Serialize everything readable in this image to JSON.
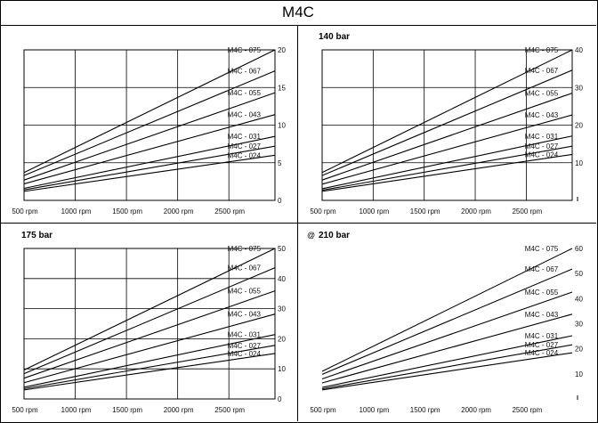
{
  "title": "M4C",
  "chart_data": [
    {
      "type": "line",
      "title": "",
      "x_tick_labels": [
        "500 rpm",
        "1000 rpm",
        "1500 rpm",
        "2000 rpm",
        "2500 rpm"
      ],
      "x_ticks": [
        500,
        1000,
        1500,
        2000,
        2500
      ],
      "xlim": [
        500,
        2950
      ],
      "y_ticks": [
        0,
        5,
        10,
        15,
        20
      ],
      "y_tick_labels": [
        "0",
        "5",
        "10",
        "15",
        "20"
      ],
      "ylim": [
        0,
        20
      ],
      "grid": true,
      "series": [
        {
          "name": "M4C - 075",
          "x": [
            500,
            2950
          ],
          "y": [
            3.7,
            20.0
          ]
        },
        {
          "name": "M4C - 067",
          "x": [
            500,
            2950
          ],
          "y": [
            3.3,
            17.2
          ]
        },
        {
          "name": "M4C - 055",
          "x": [
            500,
            2950
          ],
          "y": [
            2.7,
            14.3
          ]
        },
        {
          "name": "M4C - 043",
          "x": [
            500,
            2950
          ],
          "y": [
            2.2,
            11.4
          ]
        },
        {
          "name": "M4C - 031",
          "x": [
            500,
            2950
          ],
          "y": [
            1.6,
            8.5
          ]
        },
        {
          "name": "M4C - 027",
          "x": [
            500,
            2950
          ],
          "y": [
            1.4,
            7.2
          ]
        },
        {
          "name": "M4C - 024",
          "x": [
            500,
            2950
          ],
          "y": [
            1.2,
            6.0
          ]
        }
      ]
    },
    {
      "type": "line",
      "title": "140 bar",
      "x_tick_labels": [
        "500 rpm",
        "1000 rpm",
        "1500 rpm",
        "2000 rpm",
        "2500 rpm"
      ],
      "x_ticks": [
        500,
        1000,
        1500,
        2000,
        2500
      ],
      "xlim": [
        500,
        2950
      ],
      "y_ticks": [
        0,
        10,
        20,
        30,
        40
      ],
      "y_tick_labels": [
        "",
        "10",
        "20",
        "30",
        "40"
      ],
      "ylim": [
        0,
        40
      ],
      "grid": true,
      "series": [
        {
          "name": "M4C - 075",
          "x": [
            500,
            2950
          ],
          "y": [
            7.4,
            40.0
          ]
        },
        {
          "name": "M4C - 067",
          "x": [
            500,
            2950
          ],
          "y": [
            6.6,
            34.6
          ]
        },
        {
          "name": "M4C - 055",
          "x": [
            500,
            2950
          ],
          "y": [
            5.4,
            28.5
          ]
        },
        {
          "name": "M4C - 043",
          "x": [
            500,
            2950
          ],
          "y": [
            4.3,
            22.7
          ]
        },
        {
          "name": "M4C - 031",
          "x": [
            500,
            2950
          ],
          "y": [
            3.1,
            17.1
          ]
        },
        {
          "name": "M4C - 027",
          "x": [
            500,
            2950
          ],
          "y": [
            2.7,
            14.4
          ]
        },
        {
          "name": "M4C - 024",
          "x": [
            500,
            2950
          ],
          "y": [
            2.4,
            12.2
          ]
        }
      ]
    },
    {
      "type": "line",
      "title": "175 bar",
      "x_tick_labels": [
        "500 rpm",
        "1000 rpm",
        "1500 rpm",
        "2000 rpm",
        "2500 rpm"
      ],
      "x_ticks": [
        500,
        1000,
        1500,
        2000,
        2500
      ],
      "xlim": [
        500,
        2950
      ],
      "y_ticks": [
        0,
        10,
        20,
        30,
        40,
        50
      ],
      "y_tick_labels": [
        "0",
        "10",
        "20",
        "30",
        "40",
        "50"
      ],
      "ylim": [
        0,
        50
      ],
      "grid": true,
      "series": [
        {
          "name": "M4C - 075",
          "x": [
            500,
            2950
          ],
          "y": [
            9.6,
            50.0
          ]
        },
        {
          "name": "M4C - 067",
          "x": [
            500,
            2950
          ],
          "y": [
            8.4,
            43.6
          ]
        },
        {
          "name": "M4C - 055",
          "x": [
            500,
            2950
          ],
          "y": [
            6.9,
            35.9
          ]
        },
        {
          "name": "M4C - 043",
          "x": [
            500,
            2950
          ],
          "y": [
            5.4,
            28.2
          ]
        },
        {
          "name": "M4C - 031",
          "x": [
            500,
            2950
          ],
          "y": [
            3.9,
            21.4
          ]
        },
        {
          "name": "M4C - 027",
          "x": [
            500,
            2950
          ],
          "y": [
            3.4,
            17.8
          ]
        },
        {
          "name": "M4C - 024",
          "x": [
            500,
            2950
          ],
          "y": [
            3.0,
            15.1
          ]
        }
      ]
    },
    {
      "type": "line",
      "title": "210 bar",
      "title_prefix": "@",
      "x_tick_labels": [
        "500 rpm",
        "1000 rpm",
        "1500 rpm",
        "2000 rpm",
        "2500 rpm"
      ],
      "x_ticks": [
        500,
        1000,
        1500,
        2000,
        2500
      ],
      "xlim": [
        500,
        2950
      ],
      "y_ticks": [
        0,
        10,
        20,
        30,
        40,
        50,
        60
      ],
      "y_tick_labels": [
        "",
        "10",
        "20",
        "30",
        "40",
        "50",
        "60"
      ],
      "ylim": [
        0,
        60
      ],
      "grid": false,
      "series": [
        {
          "name": "M4C - 075",
          "x": [
            500,
            2950
          ],
          "y": [
            11.0,
            60.0
          ]
        },
        {
          "name": "M4C - 067",
          "x": [
            500,
            2950
          ],
          "y": [
            9.8,
            51.8
          ]
        },
        {
          "name": "M4C - 055",
          "x": [
            500,
            2950
          ],
          "y": [
            8.0,
            42.6
          ]
        },
        {
          "name": "M4C - 043",
          "x": [
            500,
            2950
          ],
          "y": [
            6.4,
            33.8
          ]
        },
        {
          "name": "M4C - 031",
          "x": [
            500,
            2950
          ],
          "y": [
            4.6,
            25.2
          ]
        },
        {
          "name": "M4C - 027",
          "x": [
            500,
            2950
          ],
          "y": [
            4.0,
            21.6
          ]
        },
        {
          "name": "M4C - 024",
          "x": [
            500,
            2950
          ],
          "y": [
            3.6,
            18.4
          ]
        }
      ]
    }
  ]
}
